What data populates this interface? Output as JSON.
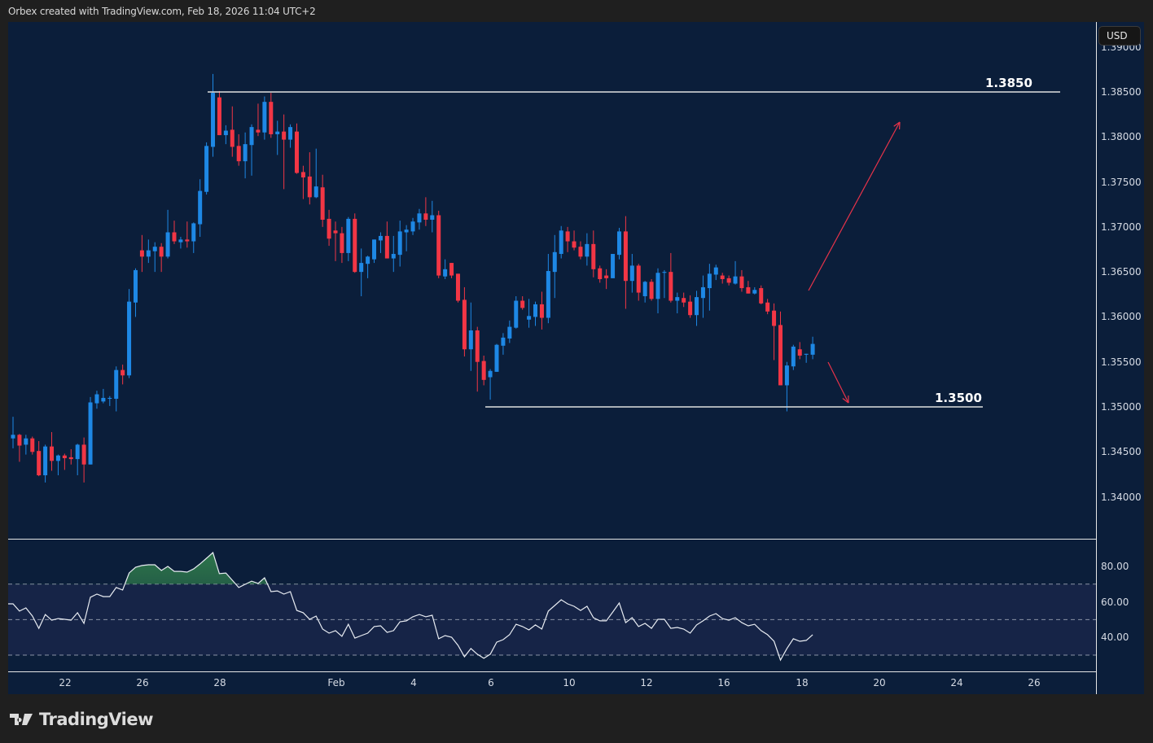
{
  "header": {
    "attribution": "Orbex created with TradingView.com, Feb 18, 2026 11:04 UTC+2"
  },
  "price_axis": {
    "currency_button": "USD",
    "labels": [
      "1.39000",
      "1.38500",
      "1.38000",
      "1.37500",
      "1.37000",
      "1.36500",
      "1.36000",
      "1.35500",
      "1.35000",
      "1.34500",
      "1.34000"
    ]
  },
  "rsi_axis": {
    "labels": [
      "80.00",
      "60.00",
      "40.00"
    ]
  },
  "time_axis": {
    "labels": [
      "22",
      "26",
      "28",
      "Feb",
      "4",
      "6",
      "10",
      "12",
      "16",
      "18",
      "20",
      "24",
      "26"
    ]
  },
  "logo": {
    "text": "TradingView"
  },
  "colors": {
    "background": "#0b1e3a",
    "up": "#1e88e5",
    "down": "#f23645",
    "annotation_arrow": "#e8334a",
    "rsi_band": "#162447",
    "rsi_overbought_fill": "#2f7a4c"
  },
  "chart_data": [
    {
      "type": "candlestick",
      "ylim": [
        1.338,
        1.392
      ],
      "grid": false,
      "levels": [
        {
          "value": 1.385,
          "label": "1.3850"
        },
        {
          "value": 1.35,
          "label": "1.3500"
        }
      ],
      "annotations": [
        "up arrow toward 1.3850",
        "down arrow toward 1.3500"
      ],
      "ohlc": [
        [
          1.3465,
          1.3489,
          1.3454,
          1.3469
        ],
        [
          1.3469,
          1.347,
          1.3439,
          1.3457
        ],
        [
          1.3458,
          1.3469,
          1.3447,
          1.3465
        ],
        [
          1.3465,
          1.3467,
          1.3447,
          1.345
        ],
        [
          1.3451,
          1.3462,
          1.3423,
          1.3424
        ],
        [
          1.3424,
          1.3458,
          1.3416,
          1.3456
        ],
        [
          1.3456,
          1.3472,
          1.3429,
          1.344
        ],
        [
          1.344,
          1.3447,
          1.3424,
          1.3446
        ],
        [
          1.3446,
          1.3448,
          1.343,
          1.3443
        ],
        [
          1.3444,
          1.3453,
          1.3436,
          1.3442
        ],
        [
          1.3442,
          1.3459,
          1.3424,
          1.3458
        ],
        [
          1.3458,
          1.3466,
          1.3416,
          1.3436
        ],
        [
          1.3436,
          1.3511,
          1.3436,
          1.3505
        ],
        [
          1.3504,
          1.3518,
          1.3498,
          1.3514
        ],
        [
          1.3506,
          1.352,
          1.3504,
          1.351
        ],
        [
          1.3509,
          1.3512,
          1.3501,
          1.351
        ],
        [
          1.3509,
          1.3545,
          1.3495,
          1.3541
        ],
        [
          1.3541,
          1.3547,
          1.3525,
          1.3535
        ],
        [
          1.3535,
          1.3631,
          1.3532,
          1.3617
        ],
        [
          1.3616,
          1.3654,
          1.36,
          1.3652
        ],
        [
          1.3674,
          1.3691,
          1.365,
          1.3667
        ],
        [
          1.3667,
          1.3686,
          1.366,
          1.3674
        ],
        [
          1.3673,
          1.3683,
          1.365,
          1.3678
        ],
        [
          1.3678,
          1.3682,
          1.365,
          1.3667
        ],
        [
          1.3667,
          1.3719,
          1.3665,
          1.3694
        ],
        [
          1.3694,
          1.3707,
          1.3681,
          1.3684
        ],
        [
          1.3683,
          1.3689,
          1.3676,
          1.3686
        ],
        [
          1.3686,
          1.3706,
          1.3677,
          1.3684
        ],
        [
          1.3684,
          1.3705,
          1.3671,
          1.3704
        ],
        [
          1.3703,
          1.3753,
          1.3689,
          1.374
        ],
        [
          1.3739,
          1.3794,
          1.3736,
          1.379
        ],
        [
          1.3789,
          1.387,
          1.3778,
          1.3849
        ],
        [
          1.3844,
          1.3851,
          1.3802,
          1.3802
        ],
        [
          1.3802,
          1.3813,
          1.3792,
          1.3807
        ],
        [
          1.3808,
          1.3834,
          1.3778,
          1.3789
        ],
        [
          1.379,
          1.3803,
          1.3768,
          1.3773
        ],
        [
          1.3773,
          1.3805,
          1.3754,
          1.3792
        ],
        [
          1.3791,
          1.3814,
          1.3757,
          1.3811
        ],
        [
          1.3808,
          1.3837,
          1.3801,
          1.3805
        ],
        [
          1.3805,
          1.3845,
          1.3797,
          1.3839
        ],
        [
          1.3839,
          1.3849,
          1.3799,
          1.3803
        ],
        [
          1.3803,
          1.3818,
          1.378,
          1.3806
        ],
        [
          1.3806,
          1.3825,
          1.3742,
          1.3797
        ],
        [
          1.3797,
          1.3814,
          1.3788,
          1.3811
        ],
        [
          1.3806,
          1.3815,
          1.3759,
          1.376
        ],
        [
          1.3761,
          1.3768,
          1.3731,
          1.3755
        ],
        [
          1.3756,
          1.3783,
          1.3725,
          1.3733
        ],
        [
          1.3733,
          1.3787,
          1.3732,
          1.3745
        ],
        [
          1.3744,
          1.3758,
          1.37,
          1.3708
        ],
        [
          1.3709,
          1.3719,
          1.3679,
          1.3687
        ],
        [
          1.3696,
          1.3706,
          1.3662,
          1.3693
        ],
        [
          1.3693,
          1.37,
          1.366,
          1.3671
        ],
        [
          1.3671,
          1.3711,
          1.3662,
          1.3709
        ],
        [
          1.3709,
          1.3715,
          1.3649,
          1.365
        ],
        [
          1.365,
          1.3676,
          1.3623,
          1.366
        ],
        [
          1.3659,
          1.3668,
          1.3643,
          1.3667
        ],
        [
          1.3664,
          1.3686,
          1.366,
          1.3686
        ],
        [
          1.3685,
          1.3694,
          1.3671,
          1.369
        ],
        [
          1.369,
          1.3706,
          1.3665,
          1.3665
        ],
        [
          1.3665,
          1.369,
          1.365,
          1.367
        ],
        [
          1.3669,
          1.3707,
          1.3656,
          1.3695
        ],
        [
          1.3694,
          1.3702,
          1.3673,
          1.3697
        ],
        [
          1.3695,
          1.371,
          1.3691,
          1.3706
        ],
        [
          1.3705,
          1.372,
          1.3697,
          1.3715
        ],
        [
          1.3715,
          1.3733,
          1.3701,
          1.3708
        ],
        [
          1.3708,
          1.3729,
          1.3694,
          1.3713
        ],
        [
          1.3713,
          1.3718,
          1.3643,
          1.3646
        ],
        [
          1.3645,
          1.3664,
          1.3642,
          1.3653
        ],
        [
          1.366,
          1.366,
          1.3643,
          1.3646
        ],
        [
          1.3648,
          1.3648,
          1.3616,
          1.3618
        ],
        [
          1.3619,
          1.3633,
          1.3556,
          1.3564
        ],
        [
          1.3564,
          1.3616,
          1.354,
          1.3585
        ],
        [
          1.3585,
          1.3589,
          1.3517,
          1.355
        ],
        [
          1.3551,
          1.3557,
          1.3524,
          1.353
        ],
        [
          1.3533,
          1.3542,
          1.3508,
          1.354
        ],
        [
          1.3539,
          1.357,
          1.3539,
          1.3569
        ],
        [
          1.3568,
          1.3582,
          1.3558,
          1.3577
        ],
        [
          1.3576,
          1.3596,
          1.3571,
          1.3589
        ],
        [
          1.3588,
          1.3623,
          1.3587,
          1.3618
        ],
        [
          1.3618,
          1.3623,
          1.3608,
          1.361
        ],
        [
          1.3597,
          1.362,
          1.3588,
          1.3601
        ],
        [
          1.36,
          1.3617,
          1.359,
          1.3614
        ],
        [
          1.3614,
          1.3628,
          1.3586,
          1.3599
        ],
        [
          1.3599,
          1.367,
          1.3593,
          1.3651
        ],
        [
          1.365,
          1.3691,
          1.3621,
          1.3672
        ],
        [
          1.367,
          1.3701,
          1.3665,
          1.3696
        ],
        [
          1.3695,
          1.37,
          1.3672,
          1.3684
        ],
        [
          1.3684,
          1.3696,
          1.3674,
          1.3677
        ],
        [
          1.3678,
          1.3684,
          1.3664,
          1.3667
        ],
        [
          1.3667,
          1.3693,
          1.3657,
          1.3681
        ],
        [
          1.3681,
          1.3696,
          1.3644,
          1.3653
        ],
        [
          1.3654,
          1.3657,
          1.3638,
          1.3642
        ],
        [
          1.3646,
          1.3653,
          1.3631,
          1.3643
        ],
        [
          1.3643,
          1.367,
          1.3643,
          1.367
        ],
        [
          1.3669,
          1.3699,
          1.3664,
          1.3695
        ],
        [
          1.3695,
          1.3712,
          1.3609,
          1.364
        ],
        [
          1.364,
          1.367,
          1.3627,
          1.3657
        ],
        [
          1.3657,
          1.3659,
          1.3618,
          1.3627
        ],
        [
          1.3623,
          1.364,
          1.3616,
          1.3639
        ],
        [
          1.3639,
          1.3642,
          1.3618,
          1.362
        ],
        [
          1.362,
          1.3654,
          1.3604,
          1.3649
        ],
        [
          1.3649,
          1.3652,
          1.3621,
          1.365
        ],
        [
          1.365,
          1.3671,
          1.3616,
          1.3618
        ],
        [
          1.3618,
          1.3627,
          1.3604,
          1.3622
        ],
        [
          1.3621,
          1.3627,
          1.3611,
          1.3616
        ],
        [
          1.3617,
          1.3624,
          1.3599,
          1.3602
        ],
        [
          1.3602,
          1.3629,
          1.359,
          1.3622
        ],
        [
          1.3621,
          1.3646,
          1.3599,
          1.3633
        ],
        [
          1.3632,
          1.3659,
          1.3607,
          1.3648
        ],
        [
          1.3647,
          1.3658,
          1.3641,
          1.3655
        ],
        [
          1.3646,
          1.3649,
          1.3637,
          1.3642
        ],
        [
          1.3643,
          1.3646,
          1.3635,
          1.3638
        ],
        [
          1.3637,
          1.3662,
          1.3636,
          1.3645
        ],
        [
          1.3645,
          1.3652,
          1.3628,
          1.3632
        ],
        [
          1.3633,
          1.364,
          1.3626,
          1.3626
        ],
        [
          1.3626,
          1.3633,
          1.3625,
          1.363
        ],
        [
          1.3632,
          1.3635,
          1.3614,
          1.3615
        ],
        [
          1.3616,
          1.362,
          1.3603,
          1.3606
        ],
        [
          1.3607,
          1.3615,
          1.3552,
          1.359
        ],
        [
          1.3591,
          1.3606,
          1.3524,
          1.3524
        ],
        [
          1.3524,
          1.355,
          1.3495,
          1.3546
        ],
        [
          1.3545,
          1.3569,
          1.3541,
          1.3567
        ],
        [
          1.3564,
          1.3572,
          1.3553,
          1.3557
        ],
        [
          1.3558,
          1.3559,
          1.3549,
          1.3559
        ],
        [
          1.3558,
          1.3578,
          1.3553,
          1.357
        ]
      ]
    },
    {
      "type": "line",
      "ylim": [
        20,
        92
      ],
      "bands": [
        30,
        50,
        70
      ],
      "values": [
        58.9,
        54.8,
        56.6,
        52.0,
        45.1,
        52.9,
        49.7,
        50.6,
        50.2,
        49.7,
        53.9,
        47.9,
        62.6,
        64.4,
        63.0,
        63.0,
        68.1,
        66.7,
        76.3,
        79.5,
        80.5,
        80.9,
        80.9,
        77.7,
        80.0,
        77.2,
        77.2,
        76.8,
        78.6,
        81.4,
        84.6,
        87.8,
        75.9,
        76.3,
        72.2,
        68.1,
        69.9,
        71.7,
        70.4,
        73.6,
        65.8,
        66.2,
        64.4,
        65.8,
        55.2,
        53.9,
        50.2,
        52.0,
        44.7,
        42.4,
        43.8,
        40.6,
        47.4,
        39.6,
        41.0,
        42.4,
        46.1,
        46.5,
        42.8,
        43.8,
        48.8,
        49.3,
        51.6,
        52.9,
        51.6,
        52.5,
        39.2,
        41.0,
        40.1,
        35.5,
        29.1,
        33.7,
        30.5,
        28.2,
        30.5,
        37.3,
        38.7,
        41.5,
        47.4,
        46.1,
        44.2,
        47.0,
        44.7,
        54.8,
        58.0,
        61.2,
        58.9,
        57.5,
        55.2,
        57.5,
        51.1,
        49.3,
        49.3,
        54.3,
        59.4,
        48.3,
        51.1,
        46.1,
        47.9,
        45.1,
        50.2,
        50.2,
        45.1,
        45.6,
        44.7,
        42.4,
        47.0,
        49.3,
        52.0,
        53.4,
        50.6,
        49.7,
        51.1,
        48.3,
        46.5,
        47.4,
        43.8,
        41.5,
        37.8,
        27.2,
        33.7,
        39.2,
        37.8,
        38.3,
        41.5
      ]
    }
  ]
}
